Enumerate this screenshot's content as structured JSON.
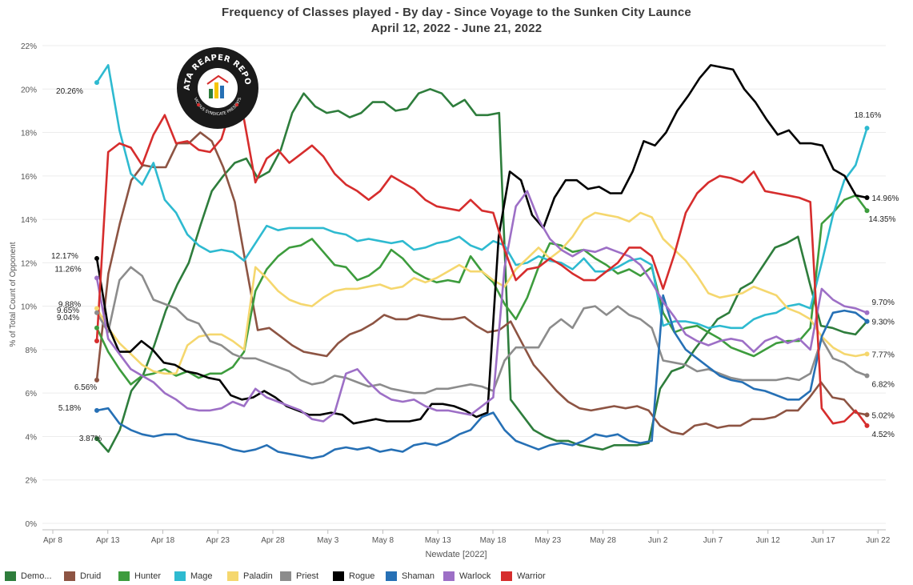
{
  "title": "Frequency of Classes played - By day - Since Voyage to the Sunken City Launce",
  "subtitle": "April 12, 2022 - June 21, 2022",
  "logo": {
    "top_text": "DATA REAPER REPORT",
    "bottom_text": "VICIOUS SYNDICATE PRESENTS"
  },
  "chart_data": {
    "type": "line",
    "xlabel": "Newdate [2022]",
    "ylabel": "% of Total Count of Opponent",
    "x_ticks": [
      "Apr 8",
      "Apr 13",
      "Apr 18",
      "Apr 23",
      "Apr 28",
      "May 3",
      "May 8",
      "May 13",
      "May 18",
      "May 23",
      "May 28",
      "Jun 2",
      "Jun 7",
      "Jun 12",
      "Jun 17",
      "Jun 22"
    ],
    "y_ticks": [
      "0%",
      "2%",
      "4%",
      "6%",
      "8%",
      "10%",
      "12%",
      "14%",
      "16%",
      "18%",
      "20%",
      "22%"
    ],
    "ylim": [
      0,
      22
    ],
    "x_start": "2022-04-12",
    "x_end": "2022-06-21",
    "grid": true,
    "legend_position": "bottom",
    "series": [
      {
        "name": "Demo...",
        "color": "#2e7d3c",
        "start_label": "3.87%",
        "end_label": "",
        "values": [
          3.9,
          3.3,
          4.3,
          6.1,
          6.8,
          8.2,
          9.8,
          11.0,
          12.0,
          13.7,
          15.3,
          16.0,
          16.6,
          16.8,
          15.9,
          16.2,
          17.2,
          18.9,
          19.8,
          19.2,
          18.9,
          19.0,
          18.7,
          18.9,
          19.4,
          19.4,
          19.0,
          19.1,
          19.8,
          20.0,
          19.8,
          19.2,
          19.5,
          18.8,
          18.8,
          18.9,
          5.7,
          5.0,
          4.3,
          4.0,
          3.8,
          3.8,
          3.6,
          3.5,
          3.4,
          3.6,
          3.6,
          3.6,
          3.7,
          6.2,
          7.0,
          7.2,
          8.0,
          8.7,
          9.4,
          9.7,
          10.8,
          11.1,
          11.9,
          12.7,
          12.9,
          13.2,
          11.1,
          9.1,
          9.0,
          8.8,
          8.7,
          9.3
        ]
      },
      {
        "name": "Druid",
        "color": "#8d5443",
        "start_label": "6.56%",
        "end_label": "5.02%",
        "values": [
          6.6,
          11.5,
          13.8,
          15.8,
          16.5,
          16.4,
          16.4,
          17.5,
          17.5,
          18.0,
          17.6,
          16.4,
          14.8,
          11.8,
          8.9,
          9.0,
          8.6,
          8.2,
          7.9,
          7.8,
          7.7,
          8.3,
          8.7,
          8.9,
          9.2,
          9.6,
          9.4,
          9.4,
          9.6,
          9.5,
          9.4,
          9.4,
          9.5,
          9.1,
          8.8,
          8.9,
          9.3,
          8.3,
          7.3,
          6.7,
          6.1,
          5.6,
          5.3,
          5.2,
          5.3,
          5.4,
          5.3,
          5.4,
          5.2,
          4.5,
          4.2,
          4.1,
          4.5,
          4.6,
          4.4,
          4.5,
          4.5,
          4.8,
          4.8,
          4.9,
          5.2,
          5.2,
          5.8,
          6.5,
          5.8,
          5.7,
          5.1,
          5.0
        ]
      },
      {
        "name": "Hunter",
        "color": "#3d9c3d",
        "start_label": "9.04%",
        "end_label": "14.35%",
        "values": [
          9.0,
          7.9,
          7.1,
          6.4,
          6.8,
          6.9,
          7.1,
          6.8,
          7.0,
          6.7,
          6.9,
          6.9,
          7.2,
          7.9,
          10.7,
          11.7,
          12.3,
          12.7,
          12.8,
          13.1,
          12.5,
          11.9,
          11.8,
          11.2,
          11.4,
          11.8,
          12.6,
          12.2,
          11.6,
          11.3,
          11.1,
          11.2,
          11.1,
          12.3,
          11.6,
          11.1,
          10.1,
          9.4,
          10.4,
          11.8,
          12.9,
          12.8,
          12.5,
          12.6,
          12.2,
          11.9,
          11.5,
          11.7,
          11.4,
          11.8,
          9.7,
          8.8,
          9.0,
          9.1,
          8.8,
          8.5,
          8.1,
          7.9,
          7.7,
          8.0,
          8.3,
          8.4,
          8.4,
          9.0,
          13.8,
          14.3,
          14.9,
          15.1,
          14.4
        ]
      },
      {
        "name": "Mage",
        "color": "#2ebad0",
        "start_label": "20.26%",
        "end_label": "18.16%",
        "values": [
          20.3,
          21.1,
          18.1,
          16.1,
          15.6,
          16.6,
          14.9,
          14.3,
          13.3,
          12.8,
          12.5,
          12.6,
          12.5,
          12.1,
          12.9,
          13.7,
          13.5,
          13.6,
          13.6,
          13.6,
          13.6,
          13.4,
          13.3,
          13.0,
          13.1,
          13.0,
          12.9,
          13.0,
          12.6,
          12.7,
          12.9,
          13.0,
          13.2,
          12.8,
          12.6,
          13.0,
          12.8,
          11.9,
          12.0,
          12.3,
          12.1,
          12.0,
          11.7,
          12.2,
          11.6,
          11.6,
          11.8,
          12.1,
          12.2,
          11.9,
          9.1,
          9.3,
          9.3,
          9.2,
          9.0,
          9.1,
          9.0,
          9.0,
          9.4,
          9.6,
          9.7,
          10.0,
          10.1,
          9.9,
          12.0,
          14.2,
          15.8,
          16.5,
          18.2
        ]
      },
      {
        "name": "Paladin",
        "color": "#f5d76e",
        "start_label": "9.88%",
        "end_label": "7.77%",
        "values": [
          9.9,
          9.0,
          8.3,
          7.8,
          7.3,
          7.0,
          6.9,
          6.9,
          8.2,
          8.6,
          8.7,
          8.7,
          8.4,
          8.0,
          11.8,
          11.3,
          10.7,
          10.3,
          10.1,
          10.0,
          10.4,
          10.7,
          10.8,
          10.8,
          10.9,
          11.0,
          10.8,
          10.9,
          11.3,
          11.1,
          11.3,
          11.6,
          11.9,
          11.6,
          11.6,
          11.2,
          10.9,
          11.7,
          12.2,
          12.7,
          12.2,
          12.6,
          13.2,
          14.0,
          14.3,
          14.2,
          14.1,
          13.9,
          14.3,
          14.1,
          13.1,
          12.6,
          12.1,
          11.4,
          10.6,
          10.4,
          10.5,
          10.6,
          10.9,
          10.7,
          10.5,
          9.9,
          9.7,
          9.4,
          8.6,
          8.1,
          7.8,
          7.7,
          7.8
        ]
      },
      {
        "name": "Priest",
        "color": "#8c8c8c",
        "start_label": "9.65%",
        "end_label": "6.82%",
        "values": [
          9.7,
          8.8,
          11.2,
          11.8,
          11.4,
          10.3,
          10.1,
          9.9,
          9.4,
          9.2,
          8.4,
          8.2,
          7.8,
          7.6,
          7.6,
          7.4,
          7.2,
          7.0,
          6.6,
          6.4,
          6.5,
          6.8,
          6.7,
          6.5,
          6.3,
          6.4,
          6.2,
          6.1,
          6.0,
          6.0,
          6.2,
          6.2,
          6.3,
          6.4,
          6.3,
          6.1,
          7.5,
          8.1,
          8.1,
          8.1,
          9.0,
          9.4,
          9.0,
          9.9,
          10.0,
          9.6,
          10.0,
          9.6,
          9.4,
          9.0,
          7.5,
          7.4,
          7.3,
          7.0,
          7.1,
          6.9,
          6.7,
          6.6,
          6.6,
          6.6,
          6.6,
          6.7,
          6.6,
          6.9,
          8.5,
          7.6,
          7.4,
          7.0,
          6.8
        ]
      },
      {
        "name": "Rogue",
        "color": "#000000",
        "start_label": "12.17%",
        "end_label": "14.96%",
        "values": [
          12.2,
          9.1,
          7.9,
          7.9,
          8.4,
          8.0,
          7.4,
          7.3,
          7.0,
          6.9,
          6.7,
          6.6,
          5.9,
          5.7,
          5.8,
          6.1,
          5.8,
          5.4,
          5.2,
          5.0,
          5.0,
          5.1,
          5.0,
          4.6,
          4.7,
          4.8,
          4.7,
          4.7,
          4.7,
          4.8,
          5.5,
          5.5,
          5.4,
          5.2,
          4.9,
          5.1,
          13.2,
          16.2,
          15.8,
          14.2,
          13.6,
          15.0,
          15.8,
          15.8,
          15.4,
          15.5,
          15.2,
          15.2,
          16.2,
          17.6,
          17.4,
          18.0,
          19.0,
          19.7,
          20.5,
          21.1,
          21.0,
          20.9,
          20.0,
          19.4,
          18.6,
          17.9,
          18.1,
          17.5,
          17.5,
          17.4,
          16.3,
          16.0,
          15.1,
          15.0
        ]
      },
      {
        "name": "Shaman",
        "color": "#2670b5",
        "start_label": "5.18%",
        "end_label": "9.30%",
        "values": [
          5.2,
          5.3,
          4.6,
          4.3,
          4.1,
          4.0,
          4.1,
          4.1,
          3.9,
          3.8,
          3.7,
          3.6,
          3.4,
          3.3,
          3.4,
          3.6,
          3.3,
          3.2,
          3.1,
          3.0,
          3.1,
          3.4,
          3.5,
          3.4,
          3.5,
          3.3,
          3.4,
          3.3,
          3.6,
          3.7,
          3.6,
          3.8,
          4.1,
          4.3,
          4.9,
          5.1,
          4.3,
          3.8,
          3.6,
          3.4,
          3.6,
          3.7,
          3.6,
          3.8,
          4.1,
          4.0,
          4.1,
          3.8,
          3.7,
          3.8,
          10.5,
          8.8,
          8.0,
          7.6,
          7.2,
          6.8,
          6.6,
          6.5,
          6.2,
          6.1,
          5.9,
          5.7,
          5.7,
          6.1,
          8.6,
          9.7,
          9.8,
          9.7,
          9.3
        ]
      },
      {
        "name": "Warlock",
        "color": "#9d6fc6",
        "start_label": "11.26%",
        "end_label": "9.70%",
        "values": [
          11.3,
          8.5,
          7.8,
          7.1,
          6.8,
          6.5,
          6.0,
          5.7,
          5.3,
          5.2,
          5.2,
          5.3,
          5.6,
          5.4,
          6.2,
          5.8,
          5.6,
          5.4,
          5.2,
          4.8,
          4.7,
          5.1,
          6.9,
          7.1,
          6.5,
          6.0,
          5.7,
          5.6,
          5.7,
          5.4,
          5.2,
          5.2,
          5.1,
          5.0,
          5.4,
          5.8,
          11.8,
          14.6,
          15.3,
          14.0,
          13.1,
          12.6,
          12.3,
          12.6,
          12.5,
          12.7,
          12.5,
          12.3,
          11.9,
          11.1,
          10.2,
          9.5,
          8.7,
          8.4,
          8.2,
          8.4,
          8.5,
          8.4,
          7.9,
          8.4,
          8.6,
          8.3,
          8.5,
          8.0,
          10.8,
          10.3,
          10.0,
          9.9,
          9.7
        ]
      },
      {
        "name": "Warrior",
        "color": "#d62d2d",
        "start_label": "",
        "end_label": "4.52%",
        "values": [
          8.4,
          17.1,
          17.5,
          17.3,
          16.5,
          17.9,
          18.8,
          17.5,
          17.6,
          17.2,
          17.1,
          17.7,
          19.4,
          18.6,
          15.7,
          16.8,
          17.2,
          16.6,
          17.0,
          17.4,
          16.9,
          16.1,
          15.6,
          15.3,
          14.9,
          15.3,
          16.0,
          15.7,
          15.4,
          14.9,
          14.6,
          14.5,
          14.4,
          14.9,
          14.4,
          14.3,
          12.6,
          11.2,
          11.7,
          11.8,
          12.2,
          11.9,
          11.5,
          11.2,
          11.2,
          11.6,
          12.0,
          12.7,
          12.7,
          12.3,
          10.8,
          12.4,
          14.3,
          15.2,
          15.7,
          16.0,
          15.9,
          15.7,
          16.2,
          15.3,
          15.2,
          15.1,
          15.0,
          14.8,
          5.3,
          4.6,
          4.7,
          5.2,
          4.5
        ]
      }
    ]
  }
}
